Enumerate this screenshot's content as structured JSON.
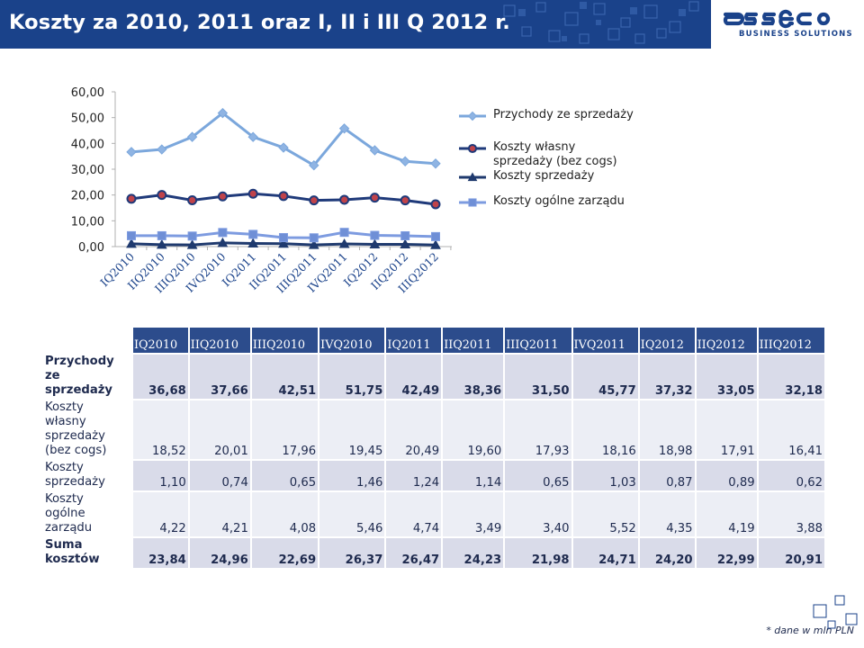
{
  "header": {
    "title": "Koszty za 2010, 2011 oraz I, II i III Q 2012 r.",
    "logo_name": "asseco",
    "logo_subtitle": "BUSINESS SOLUTIONS",
    "bar_color": "#1a428a"
  },
  "chart_data": {
    "type": "line",
    "categories": [
      "IQ2010",
      "IIQ2010",
      "IIIQ2010",
      "IVQ2010",
      "IQ2011",
      "IIQ2011",
      "IIIQ2011",
      "IVQ2011",
      "IQ2012",
      "IIQ2012",
      "IIIQ2012"
    ],
    "y_ticks": [
      "0,00",
      "10,00",
      "20,00",
      "30,00",
      "40,00",
      "50,00",
      "60,00"
    ],
    "ylim": [
      0,
      60
    ],
    "grid": false,
    "legend_position": "right",
    "series": [
      {
        "name": "Przychody ze sprzedaży",
        "color": "#8fb4e3",
        "stroke": "#7ba7dc",
        "marker": "diamond",
        "values": [
          36.68,
          37.66,
          42.51,
          51.75,
          42.49,
          38.36,
          31.5,
          45.77,
          37.32,
          33.05,
          32.18
        ]
      },
      {
        "name": "Koszty własny sprzedaży (bez cogs)",
        "color": "#c0434a",
        "stroke": "#1f3a7a",
        "marker": "circle",
        "values": [
          18.52,
          20.01,
          17.96,
          19.45,
          20.49,
          19.6,
          17.93,
          18.16,
          18.98,
          17.91,
          16.41
        ]
      },
      {
        "name": "Koszty sprzedaży",
        "color": "#1f3a6e",
        "stroke": "#1f3a6e",
        "marker": "triangle",
        "values": [
          1.1,
          0.74,
          0.65,
          1.46,
          1.24,
          1.14,
          0.65,
          1.03,
          0.87,
          0.89,
          0.62
        ]
      },
      {
        "name": "Koszty ogólne zarządu",
        "color": "#6f8fd6",
        "stroke": "#7d9be0",
        "marker": "square",
        "values": [
          4.22,
          4.21,
          4.08,
          5.46,
          4.74,
          3.49,
          3.4,
          5.52,
          4.35,
          4.19,
          3.88
        ]
      }
    ]
  },
  "table": {
    "columns": [
      "IQ2010",
      "IIQ2010",
      "IIIQ2010",
      "IVQ2010",
      "IQ2011",
      "IIQ2011",
      "IIIQ2011",
      "IVQ2011",
      "IQ2012",
      "IIQ2012",
      "IIIQ2012"
    ],
    "rows": [
      {
        "label_lines": [
          "Przychody",
          "ze",
          "sprzedaży"
        ],
        "bold": true,
        "values": [
          "36,68",
          "37,66",
          "42,51",
          "51,75",
          "42,49",
          "38,36",
          "31,50",
          "45,77",
          "37,32",
          "33,05",
          "32,18"
        ]
      },
      {
        "label_lines": [
          "Koszty",
          "własny",
          "sprzedaży",
          "(bez cogs)"
        ],
        "bold": false,
        "values": [
          "18,52",
          "20,01",
          "17,96",
          "19,45",
          "20,49",
          "19,60",
          "17,93",
          "18,16",
          "18,98",
          "17,91",
          "16,41"
        ]
      },
      {
        "label_lines": [
          "Koszty",
          "sprzedaży"
        ],
        "bold": false,
        "values": [
          "1,10",
          "0,74",
          "0,65",
          "1,46",
          "1,24",
          "1,14",
          "0,65",
          "1,03",
          "0,87",
          "0,89",
          "0,62"
        ]
      },
      {
        "label_lines": [
          "Koszty",
          "ogólne",
          "zarządu"
        ],
        "bold": false,
        "values": [
          "4,22",
          "4,21",
          "4,08",
          "5,46",
          "4,74",
          "3,49",
          "3,40",
          "5,52",
          "4,35",
          "4,19",
          "3,88"
        ]
      },
      {
        "label_lines": [
          "Suma",
          "kosztów"
        ],
        "bold": true,
        "values": [
          "23,84",
          "24,96",
          "22,69",
          "26,37",
          "26,47",
          "24,23",
          "21,98",
          "24,71",
          "24,20",
          "22,99",
          "20,91"
        ]
      }
    ]
  },
  "footnote": "* dane w mln PLN"
}
